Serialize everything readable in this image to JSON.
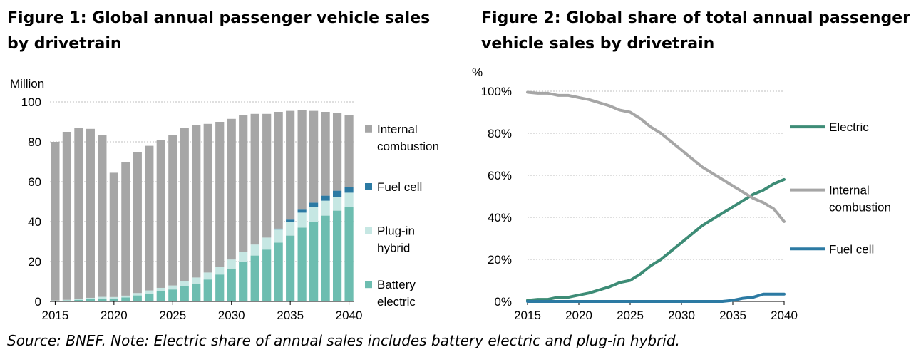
{
  "chart_data": [
    {
      "type": "bar",
      "stacked": true,
      "title": "Figure 1: Global annual passenger vehicle sales by drivetrain",
      "title_lines": [
        "Figure 1: Global annual passenger vehicle sales",
        "by drivetrain"
      ],
      "ylabel": "Million",
      "ylim": [
        0,
        100
      ],
      "yticks": [
        0,
        20,
        40,
        60,
        80,
        100
      ],
      "xticks": [
        "2015",
        "2020",
        "2025",
        "2030",
        "2035",
        "2040"
      ],
      "categories": [
        "2015",
        "2016",
        "2017",
        "2018",
        "2019",
        "2020",
        "2021",
        "2022",
        "2023",
        "2024",
        "2025",
        "2026",
        "2027",
        "2028",
        "2029",
        "2030",
        "2031",
        "2032",
        "2033",
        "2034",
        "2035",
        "2036",
        "2037",
        "2038",
        "2039",
        "2040"
      ],
      "series": [
        {
          "name": "Battery electric",
          "color": "#6dbdb0",
          "values": [
            0.3,
            0.5,
            0.8,
            1.2,
            1.5,
            1.5,
            2.0,
            3.0,
            4.0,
            5.0,
            6.0,
            7.5,
            9.0,
            11.0,
            13.5,
            16.5,
            20.0,
            23.0,
            26.0,
            29.5,
            33.0,
            37.0,
            40.0,
            43.0,
            45.5,
            47.5
          ]
        },
        {
          "name": "Plug-in hybrid",
          "color": "#c6e7e3",
          "values": [
            0.2,
            0.3,
            0.4,
            0.6,
            0.8,
            0.7,
            0.9,
            1.2,
            1.5,
            1.8,
            2.0,
            2.5,
            3.0,
            3.5,
            4.0,
            4.5,
            5.0,
            5.5,
            6.0,
            6.5,
            7.0,
            7.5,
            7.5,
            7.5,
            7.0,
            7.0
          ]
        },
        {
          "name": "Fuel cell",
          "color": "#2c7aa3",
          "values": [
            0,
            0,
            0,
            0,
            0,
            0,
            0,
            0,
            0,
            0,
            0,
            0,
            0,
            0,
            0,
            0,
            0,
            0,
            0,
            0.5,
            1.0,
            1.5,
            2.0,
            2.5,
            3.0,
            3.0
          ]
        },
        {
          "name": "Internal combustion",
          "color": "#a6a6a6",
          "values": [
            79.5,
            84.2,
            85.8,
            84.7,
            81.2,
            62.3,
            67.1,
            70.8,
            72.5,
            74.2,
            75.5,
            77.0,
            76.5,
            74.5,
            72.5,
            70.5,
            68.5,
            65.5,
            62.0,
            58.5,
            54.5,
            50.0,
            46.0,
            42.0,
            39.0,
            36.0
          ]
        }
      ],
      "legend": [
        {
          "key": "ice",
          "lines": [
            "Internal",
            "combustion"
          ],
          "color": "#a6a6a6"
        },
        {
          "key": "fuel",
          "lines": [
            "Fuel cell"
          ],
          "color": "#2c7aa3"
        },
        {
          "key": "phev",
          "lines": [
            "Plug-in",
            "hybrid"
          ],
          "color": "#c6e7e3"
        },
        {
          "key": "bev",
          "lines": [
            "Battery",
            "electric"
          ],
          "color": "#6dbdb0"
        }
      ]
    },
    {
      "type": "line",
      "title": "Figure 2: Global share of total annual passenger vehicle sales by drivetrain",
      "title_lines": [
        "Figure 2: Global share of total annual passenger",
        "vehicle sales by drivetrain"
      ],
      "ylabel": "%",
      "ylim": [
        0,
        100
      ],
      "ytick_values": [
        0,
        20,
        40,
        60,
        80,
        100
      ],
      "ytick_labels": [
        "0%",
        "20%",
        "40%",
        "60%",
        "80%",
        "100%"
      ],
      "xticks": [
        "2015",
        "2020",
        "2025",
        "2030",
        "2035",
        "2040"
      ],
      "xlim": [
        2015,
        2040
      ],
      "x": [
        2015,
        2016,
        2017,
        2018,
        2019,
        2020,
        2021,
        2022,
        2023,
        2024,
        2025,
        2026,
        2027,
        2028,
        2029,
        2030,
        2031,
        2032,
        2033,
        2034,
        2035,
        2036,
        2037,
        2038,
        2039,
        2040
      ],
      "series": [
        {
          "name": "Electric",
          "color": "#3d8c76",
          "values": [
            0.5,
            1,
            1,
            2,
            2,
            3,
            4,
            5.5,
            7,
            9,
            10,
            13,
            17,
            20,
            24,
            28,
            32,
            36,
            39,
            42,
            45,
            48,
            51,
            53,
            56,
            58
          ]
        },
        {
          "name": "Internal combustion",
          "color": "#a6a6a6",
          "values": [
            99.5,
            99,
            99,
            98,
            98,
            97,
            96,
            94.5,
            93,
            91,
            90,
            87,
            83,
            80,
            76,
            72,
            68,
            64,
            61,
            58,
            55,
            52,
            49,
            47,
            44,
            38
          ]
        },
        {
          "name": "Fuel cell",
          "color": "#2c7aa3",
          "values": [
            0,
            0,
            0,
            0,
            0,
            0,
            0,
            0,
            0,
            0,
            0,
            0,
            0,
            0,
            0,
            0,
            0,
            0,
            0,
            0,
            0.5,
            1.5,
            2,
            3.5,
            3.5,
            3.5
          ]
        }
      ],
      "legend": [
        {
          "key": "electric",
          "lines": [
            "Electric"
          ],
          "color": "#3d8c76"
        },
        {
          "key": "ice",
          "lines": [
            "Internal",
            "combustion"
          ],
          "color": "#a6a6a6"
        },
        {
          "key": "fuel",
          "lines": [
            "Fuel cell"
          ],
          "color": "#2c7aa3"
        }
      ]
    }
  ],
  "source_note": "Source: BNEF. Note: Electric share of annual sales includes battery electric and plug-in hybrid."
}
